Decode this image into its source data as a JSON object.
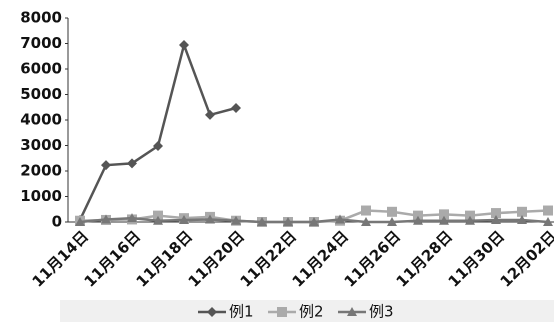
{
  "chart_data": {
    "type": "line",
    "categories": [
      "11月14日",
      null,
      "11月16日",
      null,
      "11月18日",
      null,
      "11月20日",
      null,
      "11月22日",
      null,
      "11月24日",
      null,
      "11月26日",
      null,
      "11月28日",
      null,
      "11月30日",
      null,
      "12月02日"
    ],
    "series": [
      {
        "name": "例1",
        "color": "#555555",
        "marker": "diamond",
        "values": [
          80,
          2230,
          2300,
          2980,
          6940,
          4200,
          4470,
          null,
          null,
          null,
          null,
          null,
          null,
          null,
          null,
          null,
          null,
          null,
          null
        ]
      },
      {
        "name": "例2",
        "color": "#aaaaaa",
        "marker": "square",
        "values": [
          50,
          80,
          100,
          250,
          150,
          200,
          50,
          0,
          0,
          0,
          50,
          450,
          400,
          250,
          300,
          250,
          350,
          400,
          450
        ]
      },
      {
        "name": "例3",
        "color": "#777777",
        "marker": "triangle",
        "values": [
          0,
          100,
          150,
          50,
          80,
          100,
          50,
          0,
          0,
          0,
          100,
          0,
          0,
          50,
          50,
          50,
          80,
          80,
          0
        ]
      }
    ],
    "ylim": [
      0,
      8000
    ],
    "yticks": [
      0,
      1000,
      2000,
      3000,
      4000,
      5000,
      6000,
      7000,
      8000
    ],
    "legend": "bottom"
  }
}
